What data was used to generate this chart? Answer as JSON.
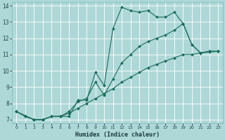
{
  "xlabel": "Humidex (Indice chaleur)",
  "background_color": "#aed8d8",
  "grid_color": "#c8e8e8",
  "line_color": "#1a6b5a",
  "xlim": [
    -0.5,
    23.5
  ],
  "ylim": [
    6.8,
    14.2
  ],
  "yticks": [
    7,
    8,
    9,
    10,
    11,
    12,
    13,
    14
  ],
  "xticks": [
    0,
    1,
    2,
    3,
    4,
    5,
    6,
    7,
    8,
    9,
    10,
    11,
    12,
    13,
    14,
    15,
    16,
    17,
    18,
    19,
    20,
    21,
    22,
    23
  ],
  "series": [
    {
      "x": [
        0,
        1,
        2,
        3,
        4,
        5,
        6,
        7,
        8,
        9,
        10,
        11,
        12,
        13,
        14,
        15,
        16,
        17,
        18,
        19,
        20,
        21,
        22,
        23
      ],
      "y": [
        7.5,
        7.2,
        7.0,
        7.0,
        7.2,
        7.2,
        7.2,
        8.2,
        8.2,
        9.9,
        9.1,
        12.6,
        13.9,
        13.7,
        13.6,
        13.7,
        13.3,
        13.3,
        13.6,
        12.9,
        11.6,
        11.1,
        11.2,
        11.2
      ]
    },
    {
      "x": [
        0,
        2,
        3,
        4,
        5,
        6,
        7,
        8,
        9,
        10,
        11,
        12,
        13,
        14,
        15,
        16,
        17,
        18,
        19,
        20,
        21,
        22,
        23
      ],
      "y": [
        7.5,
        7.0,
        7.0,
        7.2,
        7.2,
        7.5,
        8.1,
        8.3,
        9.3,
        8.5,
        9.5,
        10.5,
        11.0,
        11.5,
        11.8,
        12.0,
        12.2,
        12.5,
        12.9,
        11.6,
        11.1,
        11.2,
        11.2
      ]
    },
    {
      "x": [
        0,
        1,
        2,
        3,
        4,
        5,
        6,
        7,
        8,
        9,
        10,
        11,
        12,
        13,
        14,
        15,
        16,
        17,
        18,
        19,
        20,
        21,
        22,
        23
      ],
      "y": [
        7.5,
        7.2,
        7.0,
        7.0,
        7.2,
        7.2,
        7.4,
        7.7,
        8.0,
        8.3,
        8.6,
        8.9,
        9.3,
        9.6,
        9.9,
        10.2,
        10.4,
        10.6,
        10.8,
        11.0,
        11.0,
        11.1,
        11.15,
        11.2
      ]
    }
  ]
}
